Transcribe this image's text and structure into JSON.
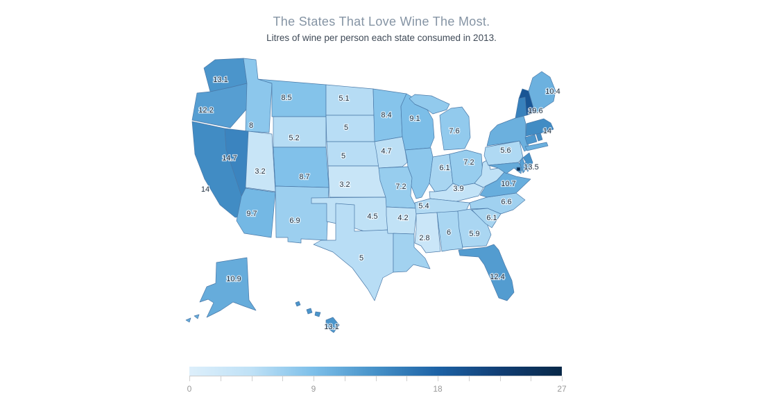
{
  "header": {
    "title": "The States That Love Wine The Most.",
    "subtitle": "Litres of wine per person each state consumed in 2013."
  },
  "chart_data": {
    "type": "choropleth_map",
    "region": "United States",
    "title": "The States That Love Wine The Most.",
    "subtitle": "Litres of wine per person each state consumed in 2013.",
    "unit": "litres of wine per person",
    "year": "2013",
    "legend_position": "bottom",
    "color_axis": {
      "min": 0,
      "max": 27,
      "tick_values": [
        0,
        9,
        18,
        27
      ],
      "tick_labels": [
        "0",
        "9",
        "18",
        "27"
      ],
      "minor_tick_step": 2.25,
      "gradient_stops": [
        [
          0,
          "#ddeffb"
        ],
        [
          4.5,
          "#bfe1f6"
        ],
        [
          9,
          "#7dbfe9"
        ],
        [
          13.5,
          "#4691c8"
        ],
        [
          18,
          "#1d62a5"
        ],
        [
          22.5,
          "#113e74"
        ],
        [
          27,
          "#082848"
        ]
      ]
    },
    "states": [
      {
        "id": "WA",
        "name": "Washington",
        "value": 13.1,
        "label": "13.1"
      },
      {
        "id": "OR",
        "name": "Oregon",
        "value": 12.2,
        "label": "12.2"
      },
      {
        "id": "CA",
        "name": "California",
        "value": 14,
        "label": "14"
      },
      {
        "id": "NV",
        "name": "Nevada",
        "value": 14.7,
        "label": "14.7"
      },
      {
        "id": "ID",
        "name": "Idaho",
        "value": 8,
        "label": "8"
      },
      {
        "id": "UT",
        "name": "Utah",
        "value": 3.2,
        "label": "3.2"
      },
      {
        "id": "AZ",
        "name": "Arizona",
        "value": 9.7,
        "label": "9.7"
      },
      {
        "id": "MT",
        "name": "Montana",
        "value": 8.5,
        "label": "8.5"
      },
      {
        "id": "WY",
        "name": "Wyoming",
        "value": 5.2,
        "label": "5.2"
      },
      {
        "id": "CO",
        "name": "Colorado",
        "value": 8.7,
        "label": "8.7"
      },
      {
        "id": "NM",
        "name": "New Mexico",
        "value": 6.9,
        "label": "6.9"
      },
      {
        "id": "ND",
        "name": "North Dakota",
        "value": 5.1,
        "label": "5.1"
      },
      {
        "id": "SD",
        "name": "South Dakota",
        "value": 5,
        "label": "5"
      },
      {
        "id": "NE",
        "name": "Nebraska",
        "value": 5,
        "label": "5"
      },
      {
        "id": "KS",
        "name": "Kansas",
        "value": 3.2,
        "label": "3.2"
      },
      {
        "id": "OK",
        "name": "Oklahoma",
        "value": 4.5,
        "label": "4.5"
      },
      {
        "id": "TX",
        "name": "Texas",
        "value": 5,
        "label": "5"
      },
      {
        "id": "MN",
        "name": "Minnesota",
        "value": 8.4,
        "label": "8.4"
      },
      {
        "id": "IA",
        "name": "Iowa",
        "value": 4.7,
        "label": "4.7"
      },
      {
        "id": "MO",
        "name": "Missouri",
        "value": 7.2,
        "label": "7.2"
      },
      {
        "id": "AR",
        "name": "Arkansas",
        "value": 4.2,
        "label": "4.2"
      },
      {
        "id": "LA",
        "name": "Louisiana",
        "value": 6.5,
        "label": "",
        "estimated": true
      },
      {
        "id": "WI",
        "name": "Wisconsin",
        "value": 9.1,
        "label": "9.1"
      },
      {
        "id": "IL",
        "name": "Illinois",
        "value": 8,
        "label": "",
        "estimated": true
      },
      {
        "id": "MI",
        "name": "Michigan",
        "value": 7.6,
        "label": "7.6"
      },
      {
        "id": "IN",
        "name": "Indiana",
        "value": 6.1,
        "label": "6.1"
      },
      {
        "id": "OH",
        "name": "Ohio",
        "value": 7.2,
        "label": "7.2"
      },
      {
        "id": "KY",
        "name": "Kentucky",
        "value": 3.9,
        "label": "3.9"
      },
      {
        "id": "TN",
        "name": "Tennessee",
        "value": 5.4,
        "label": "5.4"
      },
      {
        "id": "MS",
        "name": "Mississippi",
        "value": 2.8,
        "label": "2.8"
      },
      {
        "id": "AL",
        "name": "Alabama",
        "value": 6,
        "label": "6"
      },
      {
        "id": "GA",
        "name": "Georgia",
        "value": 5.9,
        "label": "5.9"
      },
      {
        "id": "FL",
        "name": "Florida",
        "value": 12.4,
        "label": "12.4"
      },
      {
        "id": "SC",
        "name": "South Carolina",
        "value": 6.1,
        "label": "6.1"
      },
      {
        "id": "NC",
        "name": "North Carolina",
        "value": 6.6,
        "label": "6.6"
      },
      {
        "id": "VA",
        "name": "Virginia",
        "value": 10.7,
        "label": "10.7"
      },
      {
        "id": "WV",
        "name": "West Virginia",
        "value": 4.5,
        "label": "",
        "estimated": true
      },
      {
        "id": "PA",
        "name": "Pennsylvania",
        "value": 5.6,
        "label": "5.6"
      },
      {
        "id": "NY",
        "name": "New York",
        "value": 10.5,
        "label": "",
        "estimated": true
      },
      {
        "id": "MD",
        "name": "Maryland",
        "value": 11,
        "label": "",
        "estimated": true
      },
      {
        "id": "DE",
        "name": "Delaware",
        "value": 12,
        "label": "",
        "estimated": true
      },
      {
        "id": "NJ",
        "name": "New Jersey",
        "value": 13.5,
        "label": "13.5"
      },
      {
        "id": "CT",
        "name": "Connecticut",
        "value": 13,
        "label": "",
        "estimated": true
      },
      {
        "id": "RI",
        "name": "Rhode Island",
        "value": 14,
        "label": "",
        "estimated": true
      },
      {
        "id": "MA",
        "name": "Massachusetts",
        "value": 14,
        "label": "14"
      },
      {
        "id": "VT",
        "name": "Vermont",
        "value": 15,
        "label": "",
        "estimated": true
      },
      {
        "id": "NH",
        "name": "New Hampshire",
        "value": 19.6,
        "label": "19.6"
      },
      {
        "id": "ME",
        "name": "Maine",
        "value": 10.4,
        "label": "10.4"
      },
      {
        "id": "DC",
        "name": "District of Columbia",
        "value": 26,
        "label": "",
        "estimated": true
      },
      {
        "id": "AK",
        "name": "Alaska",
        "value": 10.9,
        "label": "10.9"
      },
      {
        "id": "HI",
        "name": "Hawaii",
        "value": 13.1,
        "label": "13.1"
      }
    ]
  }
}
